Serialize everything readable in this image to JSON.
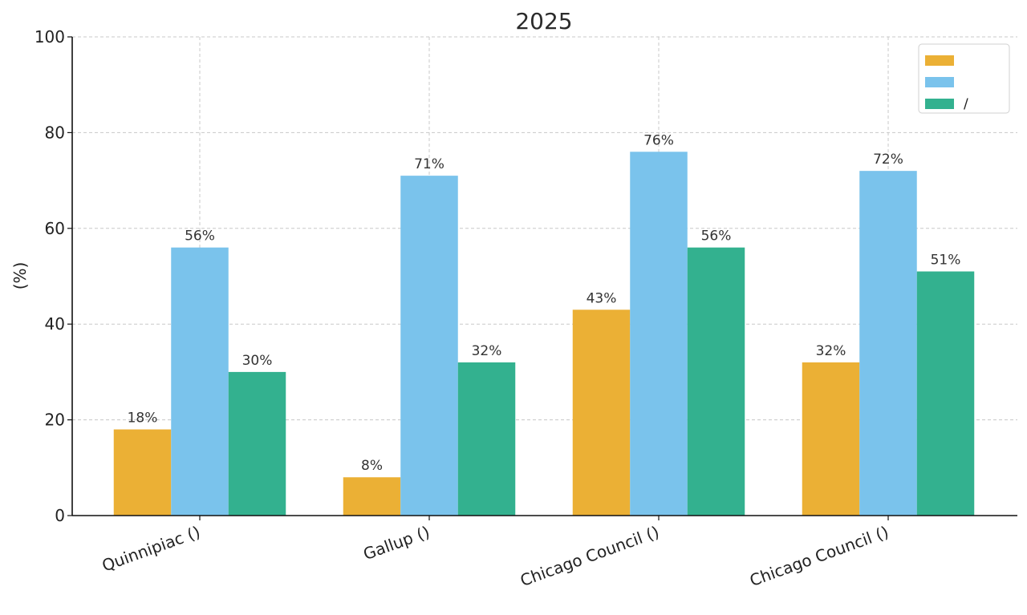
{
  "chart_data": {
    "type": "bar",
    "title": "2025 ",
    "ylabel": " (%)",
    "xlabel": "",
    "ylim": [
      0,
      100
    ],
    "yticks": [
      0,
      20,
      40,
      60,
      80,
      100
    ],
    "grid": true,
    "legend_position": "top-right",
    "categories": [
      "Quinnipiac ()",
      "Gallup ()",
      "Chicago Council ()",
      "Chicago Council ()"
    ],
    "series": [
      {
        "name": "",
        "color": "#ebb035",
        "values": [
          18,
          8,
          43,
          32
        ],
        "labels": [
          "18%",
          "8%",
          "43%",
          "32%"
        ]
      },
      {
        "name": "",
        "color": "#7ac3ec",
        "values": [
          56,
          71,
          76,
          72
        ],
        "labels": [
          "56%",
          "71%",
          "76%",
          "72%"
        ]
      },
      {
        "name": "/",
        "color": "#33b18f",
        "values": [
          30,
          32,
          56,
          51
        ],
        "labels": [
          "30%",
          "32%",
          "56%",
          "51%"
        ]
      }
    ]
  }
}
